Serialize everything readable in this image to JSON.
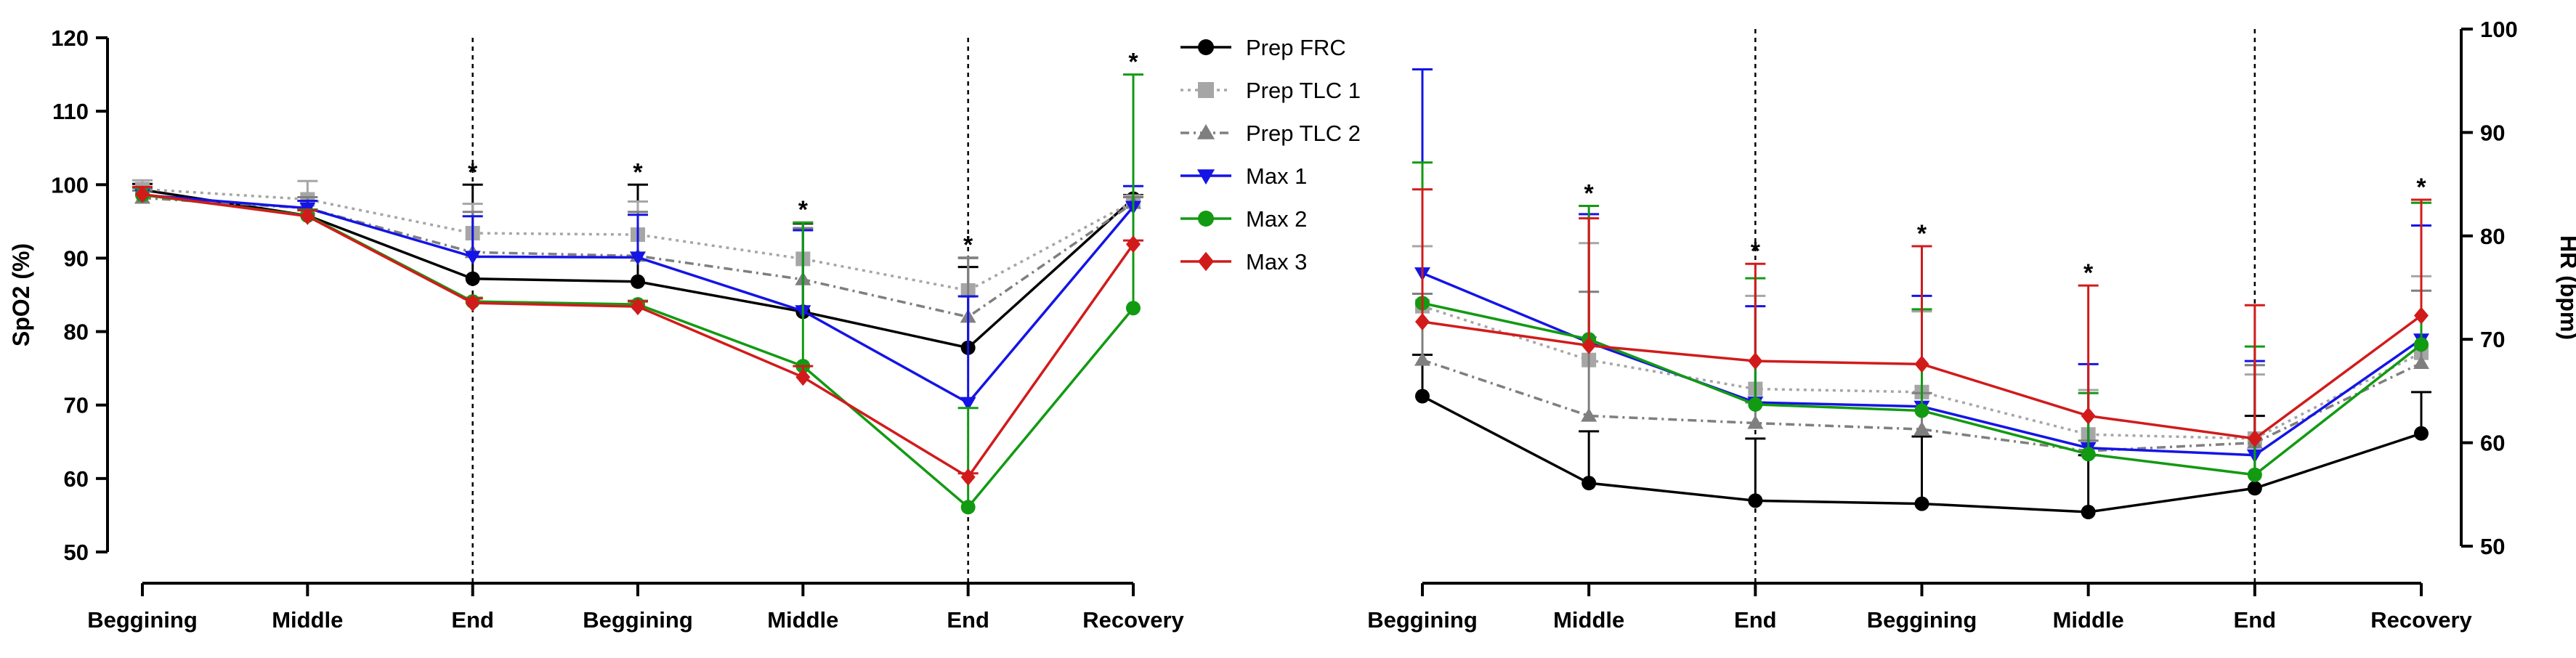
{
  "chart_data": [
    {
      "type": "line",
      "panel": "left",
      "ylabel": "SpO2 (%)",
      "ylim": [
        50,
        120
      ],
      "yticks": [
        50,
        60,
        70,
        80,
        90,
        100,
        110,
        120
      ],
      "categories": [
        "Beggining",
        "Middle",
        "End",
        "Beggining",
        "Middle",
        "End",
        "Recovery"
      ],
      "phase_dividers_after": [
        "End",
        "End"
      ],
      "significance": [
        "",
        "",
        "*",
        "*",
        "*",
        "*",
        "*"
      ],
      "series": [
        {
          "name": "Prep FRC",
          "values": [
            99.3,
            95.8,
            87.2,
            86.8,
            82.7,
            77.8,
            98.1
          ],
          "error": [
            0.8,
            0.8,
            12.8,
            13.2,
            12.0,
            11.0,
            0.5
          ]
        },
        {
          "name": "Prep TLC 1",
          "values": [
            99.4,
            98.0,
            93.4,
            93.2,
            89.9,
            85.6,
            97.7
          ],
          "error": [
            1.2,
            2.5,
            4.0,
            4.5,
            5.0,
            4.5,
            0.8
          ]
        },
        {
          "name": "Prep TLC 2",
          "values": [
            98.2,
            96.8,
            90.8,
            90.3,
            87.1,
            82.0,
            97.5
          ],
          "error": [
            1.0,
            1.5,
            5.5,
            6.0,
            7.0,
            8.0,
            0.8
          ]
        },
        {
          "name": "Max 1",
          "values": [
            98.6,
            96.8,
            90.2,
            90.1,
            82.8,
            70.3,
            97.0
          ],
          "error": [
            1.0,
            1.0,
            5.5,
            5.8,
            11.0,
            14.5,
            2.8
          ]
        },
        {
          "name": "Max 2",
          "values": [
            98.6,
            95.8,
            84.1,
            83.7,
            75.3,
            56.1,
            83.2
          ],
          "error": [
            1.0,
            0.8,
            0.5,
            0.5,
            19.5,
            13.5,
            31.8
          ]
        },
        {
          "name": "Max 3",
          "values": [
            98.7,
            95.7,
            83.9,
            83.4,
            73.8,
            60.2,
            91.9
          ],
          "error": [
            1.0,
            0.8,
            0.6,
            0.7,
            1.5,
            0.5,
            0.5
          ]
        }
      ]
    },
    {
      "type": "line",
      "panel": "right",
      "ylabel": "HR (bpm)",
      "ylim": [
        50,
        100
      ],
      "yticks": [
        50,
        60,
        70,
        80,
        90,
        100
      ],
      "categories": [
        "Beggining",
        "Middle",
        "End",
        "Beggining",
        "Middle",
        "End",
        "Recovery"
      ],
      "phase_dividers_after": [
        "End",
        "End"
      ],
      "significance": [
        "",
        "*",
        "*",
        "*",
        "*",
        "",
        "*"
      ],
      "series": [
        {
          "name": "Prep FRC",
          "values": [
            64.5,
            56.1,
            54.4,
            54.1,
            53.3,
            55.6,
            60.9
          ],
          "error": [
            4.0,
            5.0,
            6.0,
            6.5,
            5.5,
            7.0,
            4.0
          ]
        },
        {
          "name": "Prep TLC 1",
          "values": [
            73.2,
            68.0,
            65.2,
            64.9,
            60.8,
            60.4,
            68.7
          ],
          "error": [
            5.8,
            11.3,
            9.0,
            7.8,
            4.3,
            6.2,
            7.4
          ]
        },
        {
          "name": "Prep TLC 2",
          "values": [
            68.0,
            62.6,
            61.9,
            61.3,
            59.2,
            60.0,
            67.7
          ],
          "error": [
            6.4,
            12.0,
            2.0,
            3.5,
            1.0,
            7.5,
            7.0
          ]
        },
        {
          "name": "Max 1",
          "values": [
            76.4,
            69.7,
            63.9,
            63.5,
            59.5,
            58.8,
            70.0
          ],
          "error": [
            19.7,
            12.4,
            9.3,
            10.7,
            8.1,
            9.1,
            11.0
          ]
        },
        {
          "name": "Max 2",
          "values": [
            73.5,
            70.0,
            63.7,
            63.1,
            58.9,
            56.9,
            69.5
          ],
          "error": [
            13.6,
            12.9,
            12.2,
            9.8,
            5.9,
            12.4,
            13.7
          ]
        },
        {
          "name": "Max 3",
          "values": [
            71.7,
            69.4,
            67.9,
            67.6,
            62.6,
            60.4,
            72.3
          ],
          "error": [
            12.8,
            12.3,
            9.4,
            11.4,
            12.6,
            12.9,
            11.2
          ]
        }
      ]
    }
  ],
  "legend": [
    {
      "label": "Prep FRC",
      "color": "#000000",
      "marker": "circle",
      "dash": "solid"
    },
    {
      "label": "Prep TLC 1",
      "color": "#a6a6a6",
      "marker": "square",
      "dash": "dotted"
    },
    {
      "label": "Prep TLC 2",
      "color": "#7f7f7f",
      "marker": "triangle-up",
      "dash": "dashdot"
    },
    {
      "label": "Max 1",
      "color": "#1414e6",
      "marker": "triangle-down",
      "dash": "solid"
    },
    {
      "label": "Max 2",
      "color": "#129a12",
      "marker": "circle",
      "dash": "solid"
    },
    {
      "label": "Max 3",
      "color": "#d11b1b",
      "marker": "diamond",
      "dash": "solid"
    }
  ]
}
